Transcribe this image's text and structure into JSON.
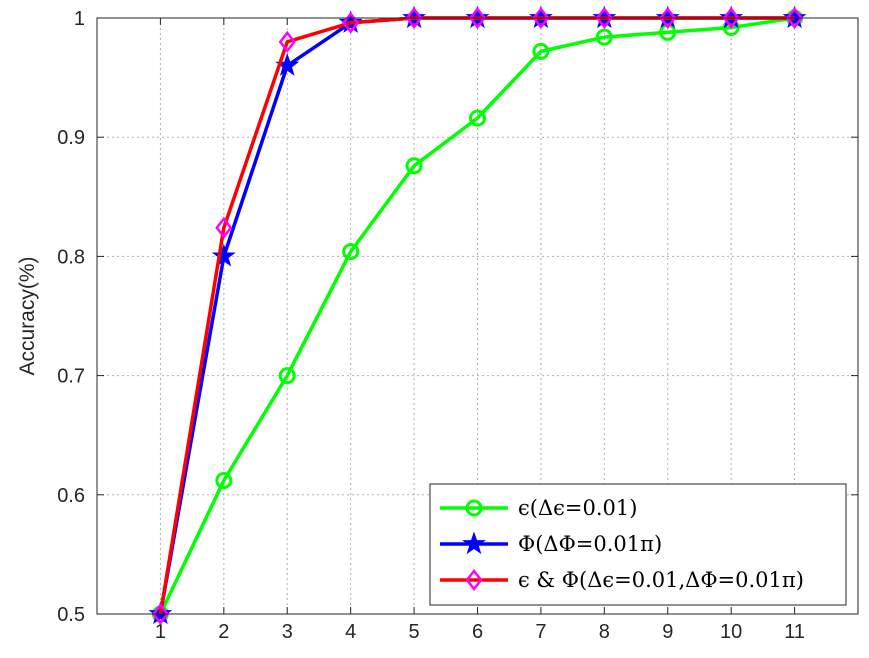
{
  "chart_data": {
    "type": "line",
    "title": "",
    "xlabel": "",
    "ylabel": "Accuracy(%)",
    "x": [
      1,
      2,
      3,
      4,
      5,
      6,
      7,
      8,
      9,
      10,
      11
    ],
    "xlim": [
      0,
      12
    ],
    "ylim": [
      0.5,
      1
    ],
    "xticks": [
      "1",
      "2",
      "3",
      "4",
      "5",
      "6",
      "7",
      "8",
      "9",
      "10",
      "11"
    ],
    "yticks": [
      "0.5",
      "0.6",
      "0.7",
      "0.8",
      "0.9",
      "1"
    ],
    "grid": true,
    "legend_position": "bottom-right",
    "series": [
      {
        "name": "ϵ(Δϵ=0.01)",
        "color": "#00ff00",
        "marker": "circle",
        "values": [
          0.5,
          0.612,
          0.7,
          0.804,
          0.876,
          0.916,
          0.972,
          0.984,
          0.988,
          0.992,
          1.0
        ]
      },
      {
        "name": "Φ(ΔΦ=0.01π)",
        "color": "#0000ff",
        "marker": "star",
        "values": [
          0.5,
          0.8,
          0.96,
          0.996,
          1.0,
          1.0,
          1.0,
          1.0,
          1.0,
          1.0,
          1.0
        ]
      },
      {
        "name": "ϵ & Φ(Δϵ=0.01,ΔΦ=0.01π)",
        "color": "#ff0000",
        "marker": "diamond",
        "marker_color": "#ff00ff",
        "values": [
          0.5,
          0.824,
          0.98,
          0.996,
          1.0,
          1.0,
          1.0,
          1.0,
          1.0,
          1.0,
          1.0
        ]
      }
    ]
  }
}
